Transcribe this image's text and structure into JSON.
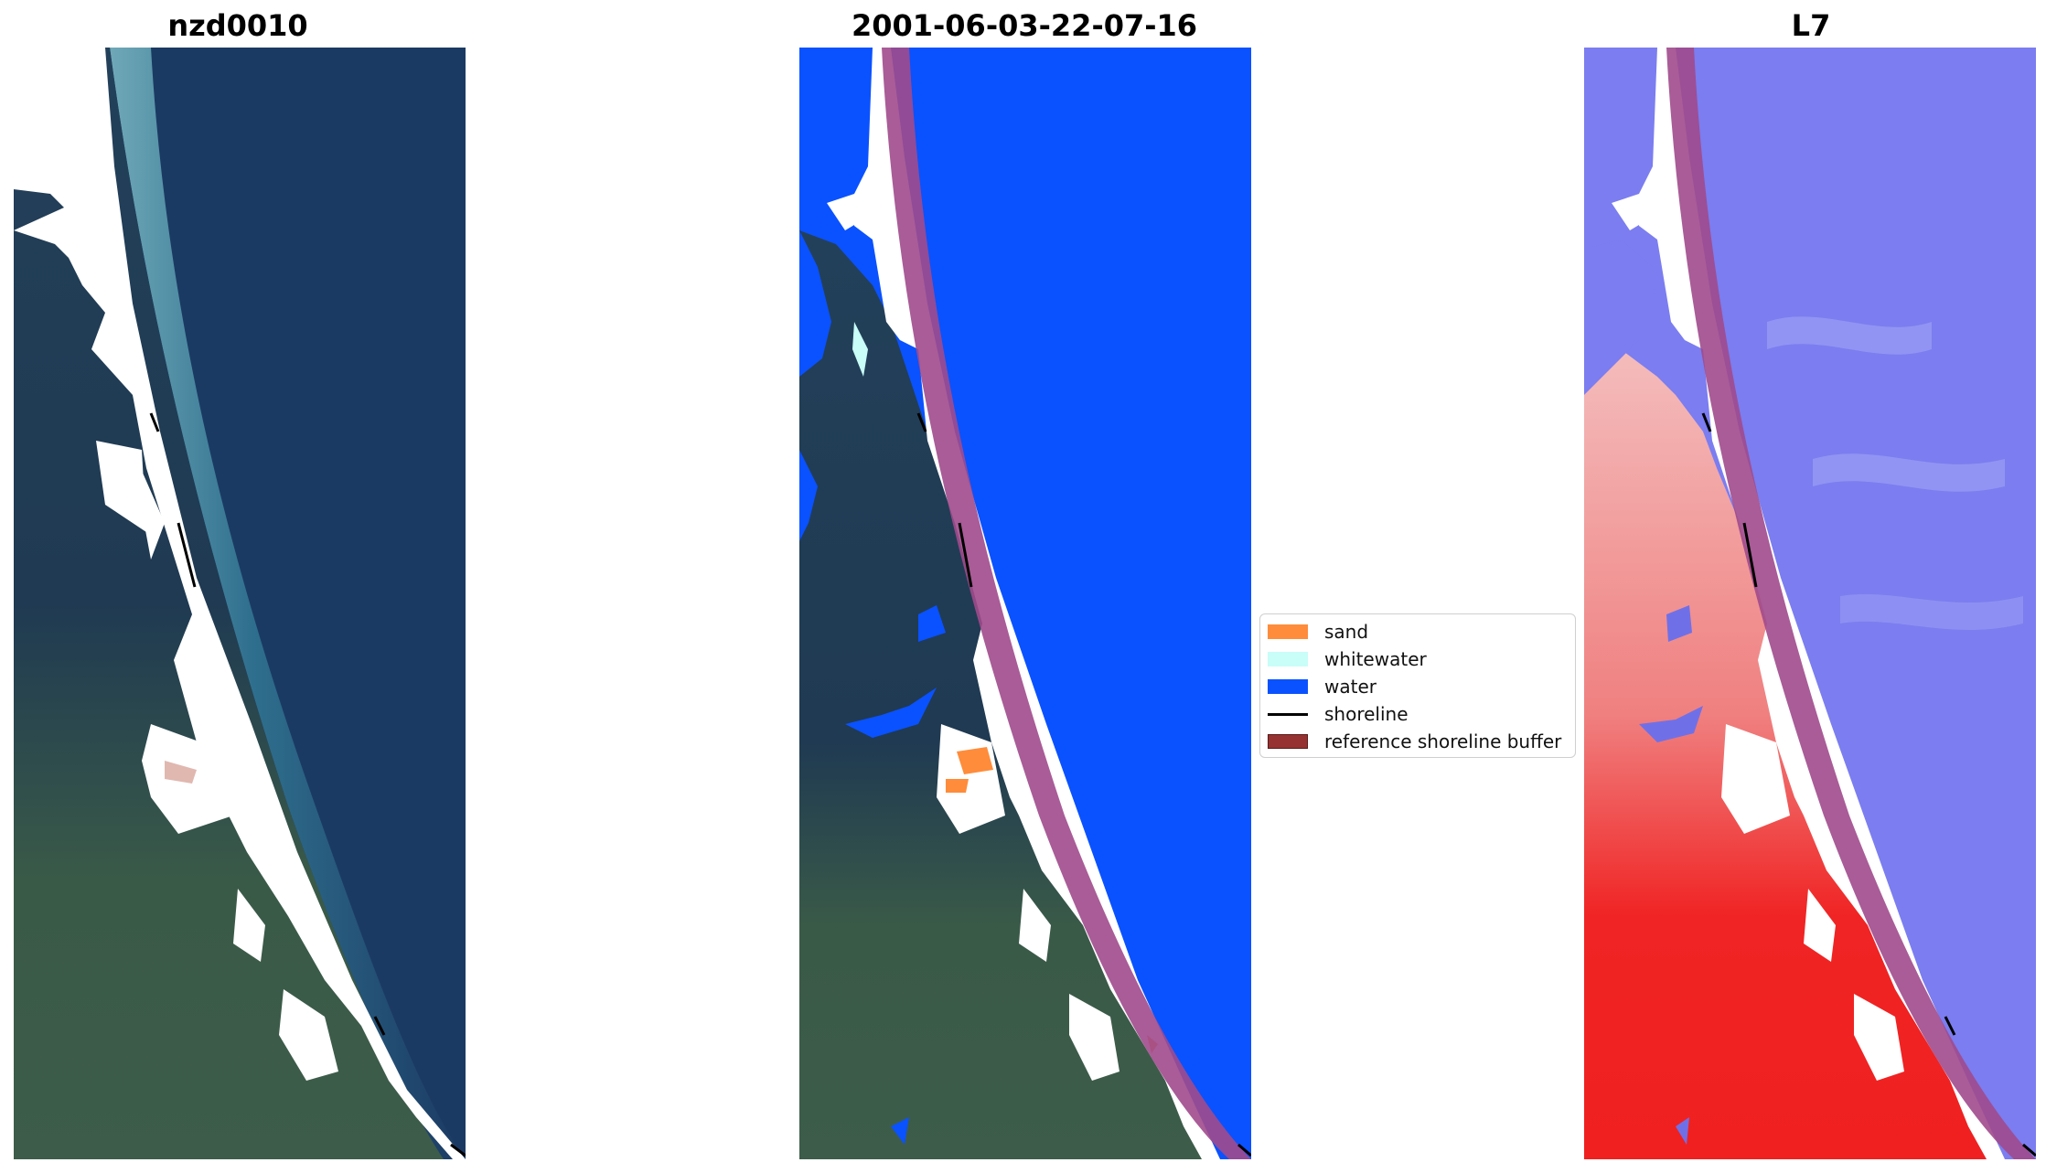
{
  "panels": [
    {
      "title": "nzd0010"
    },
    {
      "title": "2001-06-03-22-07-16"
    },
    {
      "title": "L7"
    }
  ],
  "legend": {
    "items": [
      {
        "label": "sand",
        "kind": "patch",
        "color": "#ff8c3a"
      },
      {
        "label": "whitewater",
        "kind": "patch",
        "color": "#c8fdf8"
      },
      {
        "label": "water",
        "kind": "patch",
        "color": "#0a52ff"
      },
      {
        "label": "shoreline",
        "kind": "line",
        "color": "#000000"
      },
      {
        "label": "reference shoreline buffer",
        "kind": "patch",
        "color": "#963232"
      }
    ]
  },
  "colors": {
    "ocean_rgb": "#1b3a63",
    "surf_rgb": "#2d6b8a",
    "forest": "#223a52",
    "pasture": "#3b5a4a",
    "water_class": "#0a52ff",
    "buffer": "#a04a8c",
    "index_red": "#f12a2a",
    "index_blue": "#6f70e8"
  }
}
